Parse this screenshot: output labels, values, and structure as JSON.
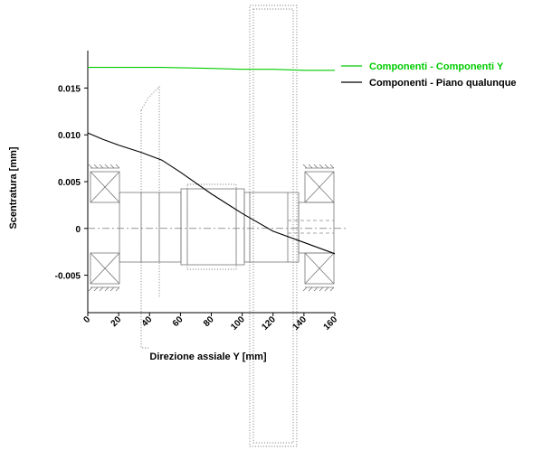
{
  "chart_data": {
    "type": "line",
    "xlabel": "Direzione assiale Y [mm]",
    "ylabel": "Scentratura [mm]",
    "xlim": [
      0,
      160
    ],
    "ylim": [
      -0.009,
      0.019
    ],
    "xticks": [
      0,
      20,
      40,
      60,
      80,
      100,
      120,
      140,
      160
    ],
    "yticks": [
      -0.005,
      0,
      0.005,
      0.01,
      0.015
    ],
    "ytick_labels": [
      "-0.005",
      "0",
      "0.005",
      "0.010",
      "0.015"
    ],
    "legend_position": "top-right",
    "series": [
      {
        "name": "Componenti - Componenti Y",
        "color": "#00cc00",
        "x": [
          0,
          20,
          48,
          80,
          100,
          120,
          140,
          160
        ],
        "y": [
          0.0172,
          0.0172,
          0.0172,
          0.0171,
          0.017,
          0.017,
          0.0169,
          0.0169
        ]
      },
      {
        "name": "Componenti - Piano qualunque",
        "color": "#000000",
        "x": [
          0,
          10,
          20,
          35,
          48,
          60,
          80,
          100,
          120,
          140,
          160
        ],
        "y": [
          0.0102,
          0.0095,
          0.0089,
          0.0081,
          0.0073,
          0.006,
          0.0037,
          0.0016,
          -0.0003,
          -0.0015,
          -0.0027
        ]
      }
    ]
  }
}
